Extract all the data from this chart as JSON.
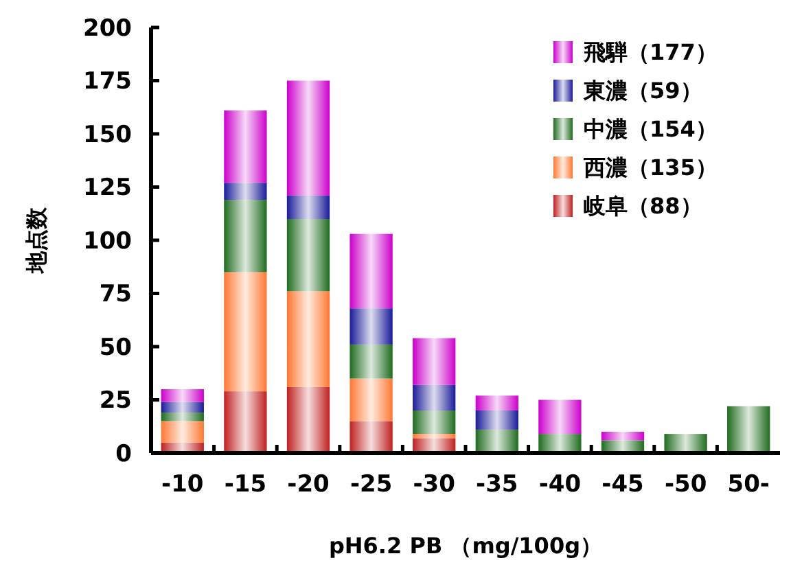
{
  "chart_data": {
    "type": "bar",
    "stacked": true,
    "xlabel": "pH6.2 PB （mg/100g）",
    "ylabel": "地点数",
    "categories": [
      "-10",
      "-15",
      "-20",
      "-25",
      "-30",
      "-35",
      "-40",
      "-45",
      "-50",
      "50-"
    ],
    "series": [
      {
        "name": "岐阜（88）",
        "color": "#c02020",
        "values": [
          5,
          29,
          31,
          15,
          7,
          0,
          0,
          0,
          0,
          0
        ]
      },
      {
        "name": "西濃（135）",
        "color": "#ff7733",
        "values": [
          10,
          56,
          45,
          20,
          2,
          0,
          0,
          0,
          0,
          0
        ]
      },
      {
        "name": "中濃（154）",
        "color": "#1f6b1f",
        "values": [
          4,
          34,
          34,
          16,
          11,
          11,
          9,
          6,
          9,
          22
        ]
      },
      {
        "name": "東濃（59）",
        "color": "#1a1a99",
        "values": [
          5,
          8,
          11,
          17,
          12,
          9,
          0,
          0,
          0,
          0
        ]
      },
      {
        "name": "飛騨（177）",
        "color": "#cc00cc",
        "values": [
          6,
          34,
          54,
          35,
          22,
          7,
          16,
          4,
          0,
          0
        ]
      }
    ],
    "ylim": [
      0,
      200
    ],
    "yticks": [
      0,
      25,
      50,
      75,
      100,
      125,
      150,
      175,
      200
    ],
    "grid": false,
    "legend": "top right"
  }
}
